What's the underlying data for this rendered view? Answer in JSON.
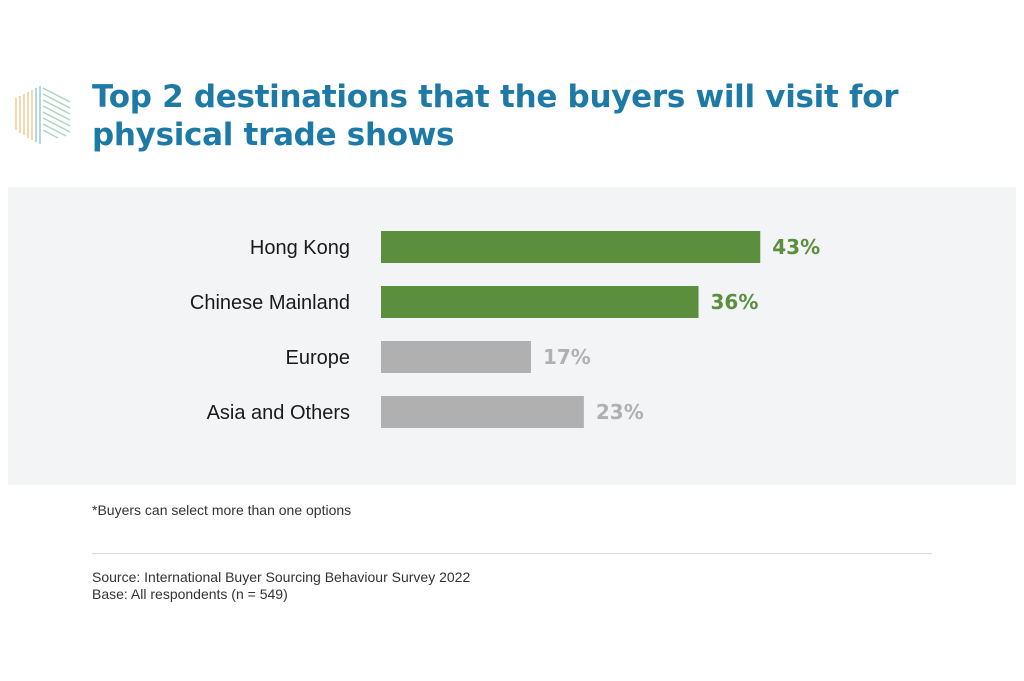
{
  "title": "Top 2 destinations that the buyers will visit for physical trade shows",
  "footnote": "*Buyers can select more than one options",
  "source": {
    "line1": "Source: International Buyer Sourcing Behaviour Survey 2022",
    "line2": "Base: All respondents (n = 549)"
  },
  "colors": {
    "title": "#1d7aa6",
    "highlight": "#5b8f3e",
    "muted": "#b0b0b0",
    "panel": "#f3f4f5"
  },
  "logo": {
    "icon": "hexagon-lines-logo"
  },
  "chart_data": {
    "type": "bar",
    "orientation": "horizontal",
    "categories": [
      "Hong Kong",
      "Chinese Mainland",
      "Europe",
      "Asia and Others"
    ],
    "values": [
      43,
      36,
      17,
      23
    ],
    "value_labels": [
      "43%",
      "36%",
      "17%",
      "23%"
    ],
    "highlighted": [
      true,
      true,
      false,
      false
    ],
    "unit": "%",
    "xlim": [
      0,
      100
    ],
    "grid": false,
    "legend": "none"
  }
}
